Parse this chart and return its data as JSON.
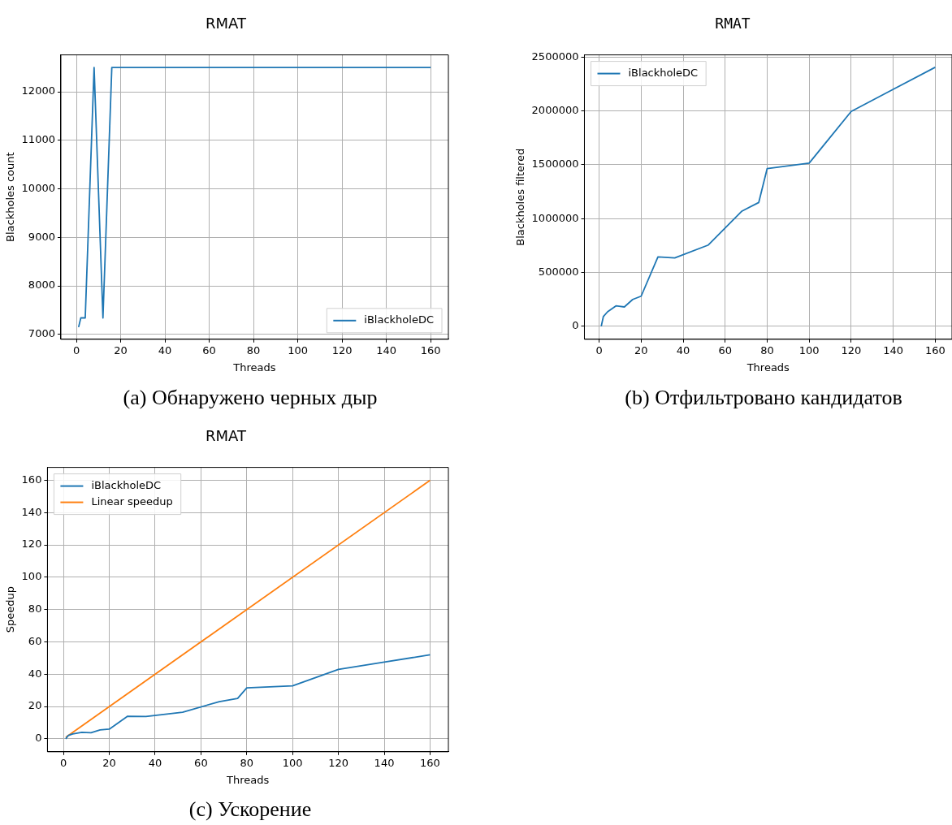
{
  "chart_data": [
    {
      "type": "line",
      "title": "RMAT",
      "xlabel": "Threads",
      "ylabel": "Blackholes count",
      "annotations": [
        "(a) Обнаружено черных дыр"
      ],
      "x": [
        1,
        2,
        4,
        8,
        12,
        16,
        20,
        28,
        36,
        52,
        68,
        76,
        80,
        100,
        120,
        140,
        160
      ],
      "series": [
        {
          "name": "iBlackholeDC",
          "color": "#1f77b4",
          "values": [
            7150,
            7340,
            7340,
            12500,
            7340,
            12500,
            12500,
            12500,
            12500,
            12500,
            12500,
            12500,
            12500,
            12500,
            12500,
            12500,
            12500
          ]
        }
      ],
      "xlim": [
        -7,
        168
      ],
      "xticks": [
        0,
        20,
        40,
        60,
        80,
        100,
        120,
        140,
        160
      ],
      "ylim": [
        6900,
        12760
      ],
      "yticks": [
        7000,
        8000,
        9000,
        10000,
        11000,
        12000
      ],
      "grid": true,
      "legend": "bottom right",
      "marker": "none"
    },
    {
      "type": "line",
      "title": "RMAT",
      "xlabel": "Threads",
      "ylabel": "Blackholes filtered",
      "annotations": [
        "(b) Отфильтровано кандидатов"
      ],
      "x": [
        1,
        2,
        4,
        8,
        12,
        16,
        20,
        28,
        36,
        52,
        68,
        76,
        80,
        100,
        120,
        140,
        160
      ],
      "series": [
        {
          "name": "iBlackholeDC",
          "color": "#1f77b4",
          "values": [
            0,
            90000,
            135000,
            190000,
            180000,
            250000,
            280000,
            645000,
            635000,
            755000,
            1070000,
            1150000,
            1465000,
            1515000,
            1995000,
            2200000,
            2405000
          ]
        }
      ],
      "xlim": [
        -7,
        168
      ],
      "xticks": [
        0,
        20,
        40,
        60,
        80,
        100,
        120,
        140,
        160
      ],
      "ylim": [
        -120000,
        2520000
      ],
      "yticks": [
        0,
        500000,
        1000000,
        1500000,
        2000000,
        2500000
      ],
      "grid": true,
      "legend": "top left",
      "marker": "none"
    },
    {
      "type": "line",
      "title": "RMAT",
      "xlabel": "Threads",
      "ylabel": "Speedup",
      "annotations": [
        "(c) Ускорение"
      ],
      "x": [
        1,
        2,
        4,
        8,
        12,
        16,
        20,
        28,
        36,
        52,
        68,
        76,
        80,
        100,
        120,
        140,
        160
      ],
      "series": [
        {
          "name": "iBlackholeDC",
          "color": "#1f77b4",
          "values": [
            0,
            2,
            3,
            4,
            3.8,
            5.5,
            6,
            14,
            13.8,
            16.5,
            23,
            25,
            31.5,
            32.8,
            43,
            47.5,
            52
          ]
        },
        {
          "name": "Linear speedup",
          "color": "#ff7f0e",
          "x": [
            1,
            160
          ],
          "values": [
            1,
            160
          ]
        }
      ],
      "xlim": [
        -7,
        168
      ],
      "xticks": [
        0,
        20,
        40,
        60,
        80,
        100,
        120,
        140,
        160
      ],
      "ylim": [
        -8,
        168
      ],
      "yticks": [
        0,
        20,
        40,
        60,
        80,
        100,
        120,
        140,
        160
      ],
      "grid": true,
      "legend": "top left",
      "marker": "none"
    }
  ]
}
